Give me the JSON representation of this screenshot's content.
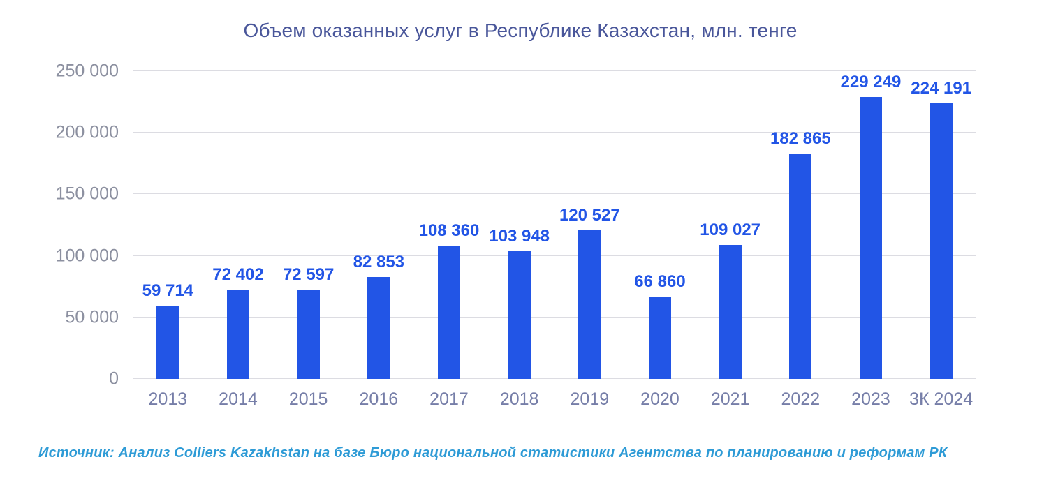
{
  "title": "Объем оказанных услуг в Республике Казахстан, млн. тенге",
  "source_note": "Источник: Анализ Colliers Kazakhstan на базе Бюро национальной статистики  Агентства по планированию и реформам РК",
  "colors": {
    "bar_color": "#2255E6",
    "value_label_color": "#2255E6",
    "title_color": "#49569A",
    "ytick_color": "#8C90A0",
    "xtick_color": "#767EA8",
    "grid_color": "#DCDCE2",
    "source_color": "#2E9BD6"
  },
  "chart_data": {
    "type": "bar",
    "title": "Объем оказанных услуг в Республике Казахстан, млн. тенге",
    "xlabel": "",
    "ylabel": "",
    "categories": [
      "2013",
      "2014",
      "2015",
      "2016",
      "2017",
      "2018",
      "2019",
      "2020",
      "2021",
      "2022",
      "2023",
      "3К 2024"
    ],
    "values": [
      59714,
      72402,
      72597,
      82853,
      108360,
      103948,
      120527,
      66860,
      109027,
      182865,
      229249,
      224191
    ],
    "value_labels": [
      "59 714",
      "72 402",
      "72 597",
      "82 853",
      "108 360",
      "103 948",
      "120 527",
      "66 860",
      "109 027",
      "182 865",
      "229 249",
      "224 191"
    ],
    "ylim": [
      0,
      250000
    ],
    "yticks": [
      0,
      50000,
      100000,
      150000,
      200000,
      250000
    ],
    "ytick_labels": [
      "0",
      "50 000",
      "100 000",
      "150 000",
      "200 000",
      "250 000"
    ],
    "grid": true,
    "legend": false,
    "bar_color": "#2255E6"
  }
}
